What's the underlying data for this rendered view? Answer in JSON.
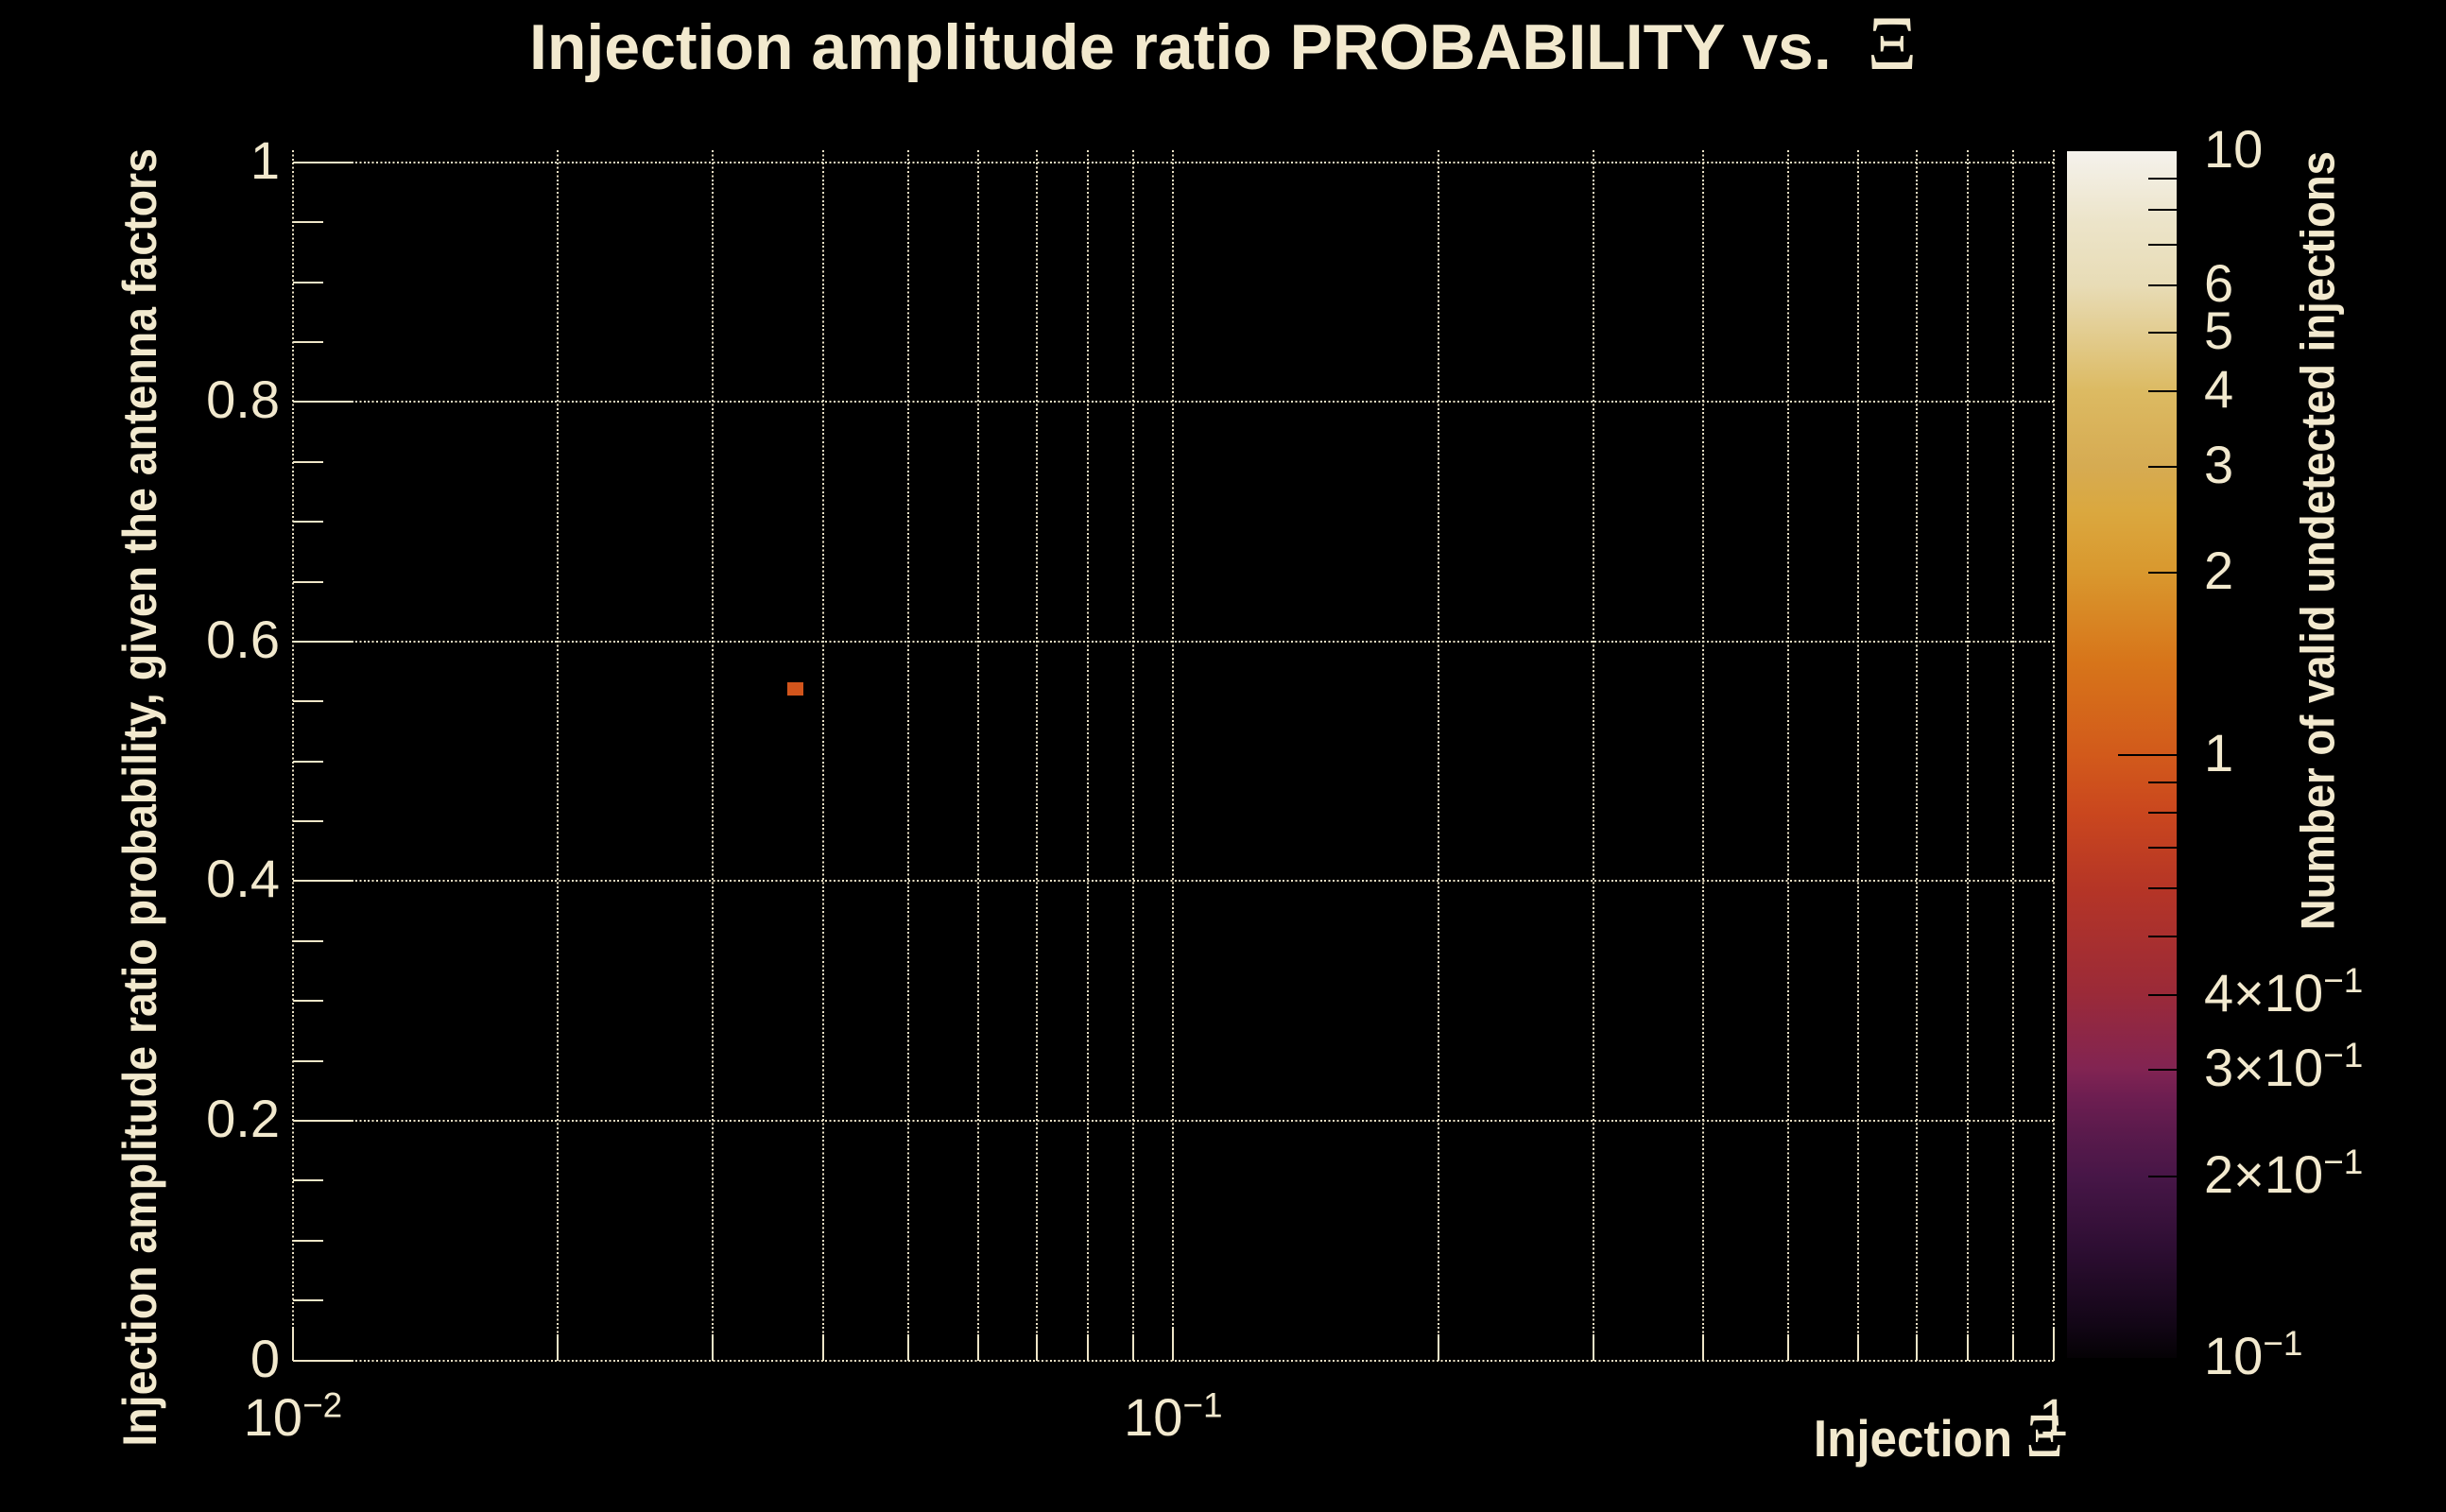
{
  "colors": {
    "background": "#000000",
    "text": "#f2e9ce",
    "grid": "#ebe1c5",
    "tick": "#efe6c8",
    "colorbar_tick": "#000000",
    "point": "#d2551c"
  },
  "chart_data": {
    "type": "heatmap",
    "title": "Injection amplitude ratio PROBABILITY vs.  Ξ",
    "xlabel": "Injection Ξ",
    "ylabel": "Injection amplitude ratio probability, given the antenna factors",
    "zlabel": "Number of valid undetected injections",
    "x_scale": "log",
    "x_range": [
      0.01,
      1
    ],
    "y_scale": "linear",
    "y_range": [
      0,
      1.01
    ],
    "z_scale": "log",
    "z_range": [
      0.1,
      10
    ],
    "grid": true,
    "legend_position": "right-colorbar",
    "x_tick_labels": [
      {
        "v": 0.01,
        "t": "10^−2"
      },
      {
        "v": 0.1,
        "t": "10^−1"
      },
      {
        "v": 1,
        "t": "1"
      }
    ],
    "y_tick_labels": [
      {
        "v": 0,
        "t": "0"
      },
      {
        "v": 0.2,
        "t": "0.2"
      },
      {
        "v": 0.4,
        "t": "0.4"
      },
      {
        "v": 0.6,
        "t": "0.6"
      },
      {
        "v": 0.8,
        "t": "0.8"
      },
      {
        "v": 1,
        "t": "1"
      }
    ],
    "z_tick_labels": [
      {
        "v": 10,
        "t": "10"
      },
      {
        "v": 6,
        "t": "6"
      },
      {
        "v": 5,
        "t": "5"
      },
      {
        "v": 4,
        "t": "4"
      },
      {
        "v": 3,
        "t": "3"
      },
      {
        "v": 2,
        "t": "2"
      },
      {
        "v": 1,
        "t": "1"
      },
      {
        "v": 0.4,
        "t": "4×10^−1"
      },
      {
        "v": 0.3,
        "t": "3×10^−1"
      },
      {
        "v": 0.2,
        "t": "2×10^−1"
      },
      {
        "v": 0.1,
        "t": "10^−1"
      }
    ],
    "cells": [
      {
        "x_min": 0.0364,
        "x_max": 0.038,
        "y_min": 0.555,
        "y_max": 0.566,
        "value": 1,
        "color": "#d2551c"
      }
    ],
    "palette": [
      {
        "p": 0.0,
        "c": "#050205"
      },
      {
        "p": 0.029,
        "c": "#130617"
      },
      {
        "p": 0.092,
        "c": "#2e0e33"
      },
      {
        "p": 0.15,
        "c": "#471647"
      },
      {
        "p": 0.186,
        "c": "#5a1a4c"
      },
      {
        "p": 0.217,
        "c": "#6e1e51"
      },
      {
        "p": 0.24,
        "c": "#822452"
      },
      {
        "p": 0.303,
        "c": "#9b2a38"
      },
      {
        "p": 0.389,
        "c": "#b53526"
      },
      {
        "p": 0.452,
        "c": "#ca471e"
      },
      {
        "p": 0.5,
        "c": "#d25a1b"
      },
      {
        "p": 0.577,
        "c": "#d7751a"
      },
      {
        "p": 0.651,
        "c": "#d9982e"
      },
      {
        "p": 0.702,
        "c": "#daa83f"
      },
      {
        "p": 0.739,
        "c": "#d6ab52"
      },
      {
        "p": 0.801,
        "c": "#dcba62"
      },
      {
        "p": 0.889,
        "c": "#e8dcb6"
      },
      {
        "p": 0.941,
        "c": "#ece4c9"
      },
      {
        "p": 1.0,
        "c": "#f5f2ec"
      }
    ]
  }
}
